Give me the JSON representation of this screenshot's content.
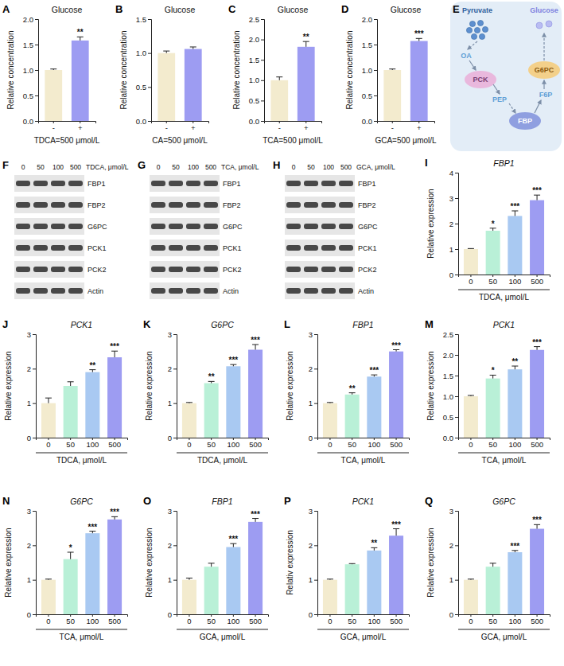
{
  "chart_data": [
    {
      "type": "bar",
      "panel": "A",
      "title": "Glucose",
      "x_label": "TDCA=500 μmol/L",
      "y_label": "Relative concentration",
      "categories": [
        "-",
        "+"
      ],
      "values": [
        1.0,
        1.58
      ],
      "errors": [
        0.02,
        0.07
      ],
      "colors": [
        "#f3ebce",
        "#9d9cf2"
      ],
      "annotations": [
        null,
        "**"
      ],
      "ylim": [
        0,
        2
      ],
      "yticks": [
        {
          "value": 0,
          "label": "0.0"
        },
        {
          "value": 0.5,
          "label": "0.5"
        },
        {
          "value": 1,
          "label": "1.0"
        },
        {
          "value": 1.5,
          "label": "1.5"
        },
        {
          "value": 2,
          "label": "2.0"
        }
      ]
    },
    {
      "type": "bar",
      "panel": "B",
      "title": "Glucose",
      "x_label": "CA=500 μmol/L",
      "y_label": "Relative concentration",
      "categories": [
        "-",
        "+"
      ],
      "values": [
        1.0,
        1.06
      ],
      "errors": [
        0.03,
        0.03
      ],
      "colors": [
        "#f3ebce",
        "#9d9cf2"
      ],
      "annotations": [
        null,
        null
      ],
      "ylim": [
        0,
        1.5
      ],
      "yticks": [
        {
          "value": 0,
          "label": "0.0"
        },
        {
          "value": 0.5,
          "label": "0.5"
        },
        {
          "value": 1,
          "label": "1.0"
        },
        {
          "value": 1.5,
          "label": "1.5"
        }
      ]
    },
    {
      "type": "bar",
      "panel": "C",
      "title": "Glucose",
      "x_label": "TCA=500 μmol/L",
      "y_label": "Relative concentration",
      "categories": [
        "-",
        "+"
      ],
      "values": [
        1.0,
        1.82
      ],
      "errors": [
        0.08,
        0.13
      ],
      "colors": [
        "#f3ebce",
        "#9d9cf2"
      ],
      "annotations": [
        null,
        "**"
      ],
      "ylim": [
        0,
        2.5
      ],
      "yticks": [
        {
          "value": 0,
          "label": "0.0"
        },
        {
          "value": 0.5,
          "label": "0.5"
        },
        {
          "value": 1,
          "label": "1.0"
        },
        {
          "value": 1.5,
          "label": "1.5"
        },
        {
          "value": 2,
          "label": "2.0"
        },
        {
          "value": 2.5,
          "label": "2.5"
        }
      ]
    },
    {
      "type": "bar",
      "panel": "D",
      "title": "Glucose",
      "x_label": "GCA=500 μmol/L",
      "y_label": "Relative concentration",
      "categories": [
        "-",
        "+"
      ],
      "values": [
        1.0,
        1.57
      ],
      "errors": [
        0.02,
        0.05
      ],
      "colors": [
        "#f3ebce",
        "#9d9cf2"
      ],
      "annotations": [
        null,
        "***"
      ],
      "ylim": [
        0,
        2
      ],
      "yticks": [
        {
          "value": 0,
          "label": "0.0"
        },
        {
          "value": 0.5,
          "label": "0.5"
        },
        {
          "value": 1,
          "label": "1.0"
        },
        {
          "value": 1.5,
          "label": "1.5"
        },
        {
          "value": 2,
          "label": "2.0"
        }
      ]
    },
    {
      "type": "bar",
      "panel": "I",
      "title": "FBP1",
      "x_label": "TDCA, μmol/L",
      "y_label": "Relative expression",
      "categories": [
        "0",
        "50",
        "100",
        "500"
      ],
      "values": [
        1.0,
        1.72,
        2.3,
        2.92
      ],
      "errors": [
        0.02,
        0.1,
        0.2,
        0.2
      ],
      "colors": [
        "#f3ebce",
        "#b9f0d7",
        "#a9c9f2",
        "#9d9cf2"
      ],
      "annotations": [
        null,
        "*",
        "***",
        "***"
      ],
      "ylim": [
        0,
        4
      ],
      "yticks": [
        0,
        1,
        2,
        3,
        4
      ]
    },
    {
      "type": "bar",
      "panel": "J",
      "title": "PCK1",
      "x_label": "TDCA, μmol/L",
      "y_label": "Relative expression",
      "categories": [
        "0",
        "50",
        "100",
        "500"
      ],
      "values": [
        1.0,
        1.5,
        1.9,
        2.33
      ],
      "errors": [
        0.15,
        0.12,
        0.07,
        0.18
      ],
      "colors": [
        "#f3ebce",
        "#b9f0d7",
        "#a9c9f2",
        "#9d9cf2"
      ],
      "annotations": [
        null,
        null,
        "**",
        "***"
      ],
      "ylim": [
        0,
        3
      ],
      "yticks": [
        0,
        1,
        2,
        3
      ]
    },
    {
      "type": "bar",
      "panel": "K",
      "title": "G6PC",
      "x_label": "TDCA, μmol/L",
      "y_label": "Relative expression",
      "categories": [
        "0",
        "50",
        "100",
        "500"
      ],
      "values": [
        1.0,
        1.58,
        2.07,
        2.55
      ],
      "errors": [
        0.02,
        0.05,
        0.05,
        0.15
      ],
      "colors": [
        "#f3ebce",
        "#b9f0d7",
        "#a9c9f2",
        "#9d9cf2"
      ],
      "annotations": [
        null,
        "**",
        "***",
        "***"
      ],
      "ylim": [
        0,
        3
      ],
      "yticks": [
        0,
        1,
        2,
        3
      ]
    },
    {
      "type": "bar",
      "panel": "L",
      "title": "FBP1",
      "x_label": "TCA, μmol/L",
      "y_label": "Relative expression",
      "categories": [
        "0",
        "50",
        "100",
        "500"
      ],
      "values": [
        1.0,
        1.25,
        1.77,
        2.5
      ],
      "errors": [
        0.02,
        0.05,
        0.05,
        0.05
      ],
      "colors": [
        "#f3ebce",
        "#b9f0d7",
        "#a9c9f2",
        "#9d9cf2"
      ],
      "annotations": [
        null,
        "**",
        "***",
        "***"
      ],
      "ylim": [
        0,
        3
      ],
      "yticks": [
        0,
        1,
        2,
        3
      ]
    },
    {
      "type": "bar",
      "panel": "M",
      "title": "PCK1",
      "x_label": "TCA, μmol/L",
      "y_label": "Relative expression",
      "categories": [
        "0",
        "50",
        "100",
        "500"
      ],
      "values": [
        1.0,
        1.43,
        1.65,
        2.12
      ],
      "errors": [
        0.02,
        0.08,
        0.08,
        0.08
      ],
      "colors": [
        "#f3ebce",
        "#b9f0d7",
        "#a9c9f2",
        "#9d9cf2"
      ],
      "annotations": [
        null,
        "*",
        "**",
        "***"
      ],
      "ylim": [
        0,
        2.5
      ],
      "yticks": [
        {
          "value": 0,
          "label": "0.0"
        },
        {
          "value": 0.5,
          "label": "0.5"
        },
        {
          "value": 1,
          "label": "1.0"
        },
        {
          "value": 1.5,
          "label": "1.5"
        },
        {
          "value": 2,
          "label": "2.0"
        },
        {
          "value": 2.5,
          "label": "2.5"
        }
      ]
    },
    {
      "type": "bar",
      "panel": "N",
      "title": "G6PC",
      "x_label": "TCA, μmol/L",
      "y_label": "Relative expression",
      "categories": [
        "0",
        "50",
        "100",
        "500"
      ],
      "values": [
        1.0,
        1.6,
        2.35,
        2.75
      ],
      "errors": [
        0.02,
        0.2,
        0.06,
        0.08
      ],
      "colors": [
        "#f3ebce",
        "#b9f0d7",
        "#a9c9f2",
        "#9d9cf2"
      ],
      "annotations": [
        null,
        "*",
        "***",
        "***"
      ],
      "ylim": [
        0,
        3
      ],
      "yticks": [
        0,
        1,
        2,
        3
      ]
    },
    {
      "type": "bar",
      "panel": "O",
      "title": "FBP1",
      "x_label": "GCA, μmol/L",
      "y_label": "Relative expression",
      "categories": [
        "0",
        "50",
        "100",
        "500"
      ],
      "values": [
        1.0,
        1.38,
        1.95,
        2.68
      ],
      "errors": [
        0.05,
        0.1,
        0.1,
        0.1
      ],
      "colors": [
        "#f3ebce",
        "#b9f0d7",
        "#a9c9f2",
        "#9d9cf2"
      ],
      "annotations": [
        null,
        null,
        "***",
        "***"
      ],
      "ylim": [
        0,
        3
      ],
      "yticks": [
        0,
        1,
        2,
        3
      ]
    },
    {
      "type": "bar",
      "panel": "P",
      "title": "PCK1",
      "x_label": "GCA, μmol/L",
      "y_label": "Relativ expression",
      "categories": [
        "0",
        "50",
        "100",
        "500"
      ],
      "values": [
        1.0,
        1.45,
        1.85,
        2.28
      ],
      "errors": [
        0.02,
        0.02,
        0.08,
        0.2
      ],
      "colors": [
        "#f3ebce",
        "#b9f0d7",
        "#a9c9f2",
        "#9d9cf2"
      ],
      "annotations": [
        null,
        null,
        "**",
        "***"
      ],
      "ylim": [
        0,
        3
      ],
      "yticks": [
        0,
        1,
        2,
        3
      ]
    },
    {
      "type": "bar",
      "panel": "Q",
      "title": "G6PC",
      "x_label": "GCA, μmol/L",
      "y_label": "Relative expression",
      "categories": [
        "0",
        "50",
        "100",
        "500"
      ],
      "values": [
        1.0,
        1.38,
        1.8,
        2.48
      ],
      "errors": [
        0.02,
        0.1,
        0.05,
        0.12
      ],
      "colors": [
        "#f3ebce",
        "#b9f0d7",
        "#a9c9f2",
        "#9d9cf2"
      ],
      "annotations": [
        null,
        null,
        "***",
        "***"
      ],
      "ylim": [
        0,
        3
      ],
      "yticks": [
        0,
        1,
        2,
        3
      ]
    }
  ],
  "diagram": {
    "panel": "E",
    "nodes": [
      {
        "label": "Pyruvate"
      },
      {
        "label": "OA"
      },
      {
        "label": "PCK"
      },
      {
        "label": "PEP"
      },
      {
        "label": "FBP"
      },
      {
        "label": "F6P"
      },
      {
        "label": "G6PC"
      },
      {
        "label": "Glucose"
      }
    ]
  },
  "blots": [
    {
      "panel": "F",
      "treatment": "TDCA, μmol/L",
      "doses": [
        "0",
        "50",
        "100",
        "500"
      ],
      "proteins": [
        "FBP1",
        "FBP2",
        "G6PC",
        "PCK1",
        "PCK2",
        "Actin"
      ]
    },
    {
      "panel": "G",
      "treatment": "TCA, μmol/L",
      "doses": [
        "0",
        "50",
        "100",
        "500"
      ],
      "proteins": [
        "FBP1",
        "FBP2",
        "G6PC",
        "PCK1",
        "PCK2",
        "Actin"
      ]
    },
    {
      "panel": "H",
      "treatment": "GCA, μmol/L",
      "doses": [
        "0",
        "50",
        "100",
        "500"
      ],
      "proteins": [
        "FBP1",
        "FBP2",
        "G6PC",
        "PCK1",
        "PCK2",
        "Actin"
      ]
    }
  ]
}
